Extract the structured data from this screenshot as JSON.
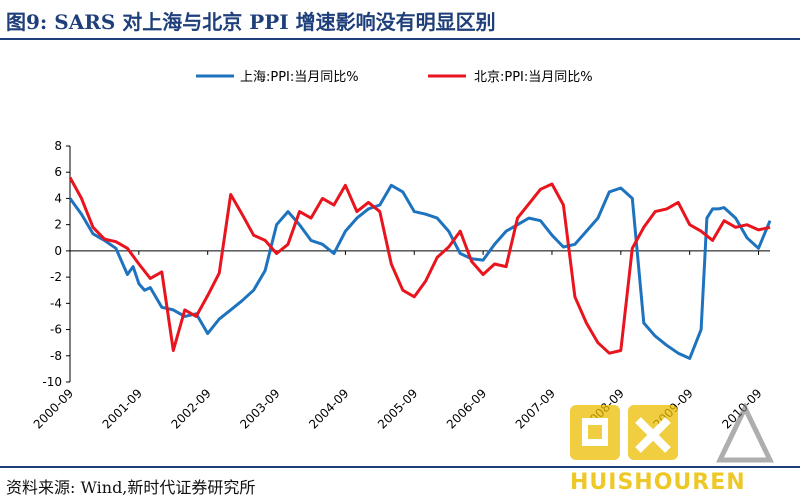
{
  "header": {
    "title": "图9:  SARS 对上海与北京 PPI 增速影响没有明显区别"
  },
  "footer": {
    "source": "资料来源:  Wind,新时代证券研究所"
  },
  "watermark": {
    "text": "HUISHOUREN"
  },
  "colors": {
    "series_blue": "#1e73be",
    "series_red": "#e8141e",
    "axis": "#000000",
    "title": "#1f3f7a"
  },
  "chart_data": {
    "type": "line",
    "ylim": [
      -10,
      8
    ],
    "yticks": [
      8,
      6,
      4,
      2,
      0,
      -2,
      -4,
      -6,
      -8,
      -10
    ],
    "grid": false,
    "legend": "top-right",
    "xticks": [
      "2000-09",
      "2001-09",
      "2002-09",
      "2003-09",
      "2004-09",
      "2005-09",
      "2006-09",
      "2007-09",
      "2008-09",
      "2009-09",
      "2010-09"
    ],
    "series": [
      {
        "name": "上海:PPI:当月同比%",
        "color": "#1e73be",
        "x": [
          0,
          2,
          4,
          6,
          8,
          10,
          11,
          12,
          13,
          14,
          16,
          18,
          20,
          22,
          24,
          26,
          28,
          30,
          32,
          34,
          36,
          38,
          40,
          42,
          44,
          46,
          48,
          50,
          52,
          54,
          56,
          58,
          60,
          62,
          64,
          66,
          68,
          70,
          72,
          74,
          76,
          78,
          80,
          82,
          84,
          86,
          88,
          90,
          92,
          94,
          96,
          98,
          100,
          102,
          104,
          106,
          108,
          110,
          111,
          112,
          113,
          114,
          116,
          118,
          120,
          122
        ],
        "y": [
          4,
          2.8,
          1.3,
          0.8,
          0.2,
          -1.8,
          -1.2,
          -2.5,
          -3,
          -2.8,
          -4.3,
          -4.5,
          -5,
          -4.8,
          -6.3,
          -5.2,
          -4.5,
          -3.8,
          -3,
          -1.5,
          2,
          3,
          2,
          0.8,
          0.5,
          -0.2,
          1.5,
          2.5,
          3.2,
          3.5,
          5,
          4.5,
          3,
          2.8,
          2.5,
          1.5,
          -0.2,
          -0.6,
          -0.7,
          0.5,
          1.5,
          2,
          2.5,
          2.3,
          1.2,
          0.3,
          0.5,
          1.5,
          2.5,
          4.5,
          4.8,
          4,
          -5.5,
          -6.5,
          -7.2,
          -7.8,
          -8.2,
          -6,
          2.5,
          3.2,
          3.2,
          3.3,
          2.5,
          1,
          0.2,
          2.3
        ]
      },
      {
        "name": "北京:PPI:当月同比%",
        "color": "#e8141e",
        "x": [
          0,
          2,
          4,
          6,
          8,
          10,
          12,
          14,
          16,
          18,
          20,
          22,
          24,
          26,
          28,
          30,
          32,
          34,
          36,
          38,
          40,
          42,
          44,
          46,
          48,
          50,
          52,
          54,
          56,
          58,
          60,
          62,
          64,
          66,
          68,
          70,
          72,
          74,
          76,
          78,
          80,
          82,
          84,
          86,
          88,
          90,
          92,
          94,
          96,
          98,
          100,
          102,
          104,
          106,
          108,
          110,
          112,
          114,
          116,
          118,
          120,
          122
        ],
        "y": [
          5.6,
          4,
          1.8,
          0.9,
          0.7,
          0.2,
          -1,
          -2.1,
          -1.6,
          -7.6,
          -4.5,
          -5,
          -3.4,
          -1.7,
          4.3,
          2.8,
          1.2,
          0.8,
          -0.2,
          0.5,
          3,
          2.5,
          4,
          3.5,
          5,
          3,
          3.7,
          3,
          -1,
          -3,
          -3.5,
          -2.3,
          -0.5,
          0.3,
          1.5,
          -0.8,
          -1.8,
          -1,
          -1.2,
          2.5,
          3.6,
          4.7,
          5.1,
          3.5,
          -3.5,
          -5.5,
          -7,
          -7.8,
          -7.6,
          0.2,
          1.8,
          3,
          3.2,
          3.7,
          2,
          1.5,
          0.8,
          2.3,
          1.8,
          2,
          1.6,
          1.8
        ]
      }
    ]
  }
}
